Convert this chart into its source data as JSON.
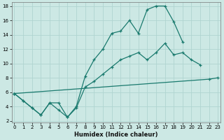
{
  "xlabel": "Humidex (Indice chaleur)",
  "bg_color": "#cce8e4",
  "grid_color": "#b0d4d0",
  "line_color": "#1a7a6e",
  "line1_x": [
    0,
    1,
    2,
    3,
    4,
    5,
    6,
    7,
    8,
    9,
    10,
    11,
    12,
    13,
    14,
    15,
    16,
    17,
    18,
    19
  ],
  "line1_y": [
    5.8,
    4.8,
    3.8,
    2.8,
    4.5,
    4.5,
    2.5,
    4.0,
    8.2,
    10.5,
    12.0,
    14.2,
    14.5,
    16.0,
    14.2,
    17.5,
    18.0,
    18.0,
    15.8,
    13.0
  ],
  "line2_x": [
    0,
    1,
    2,
    3,
    4,
    5,
    6,
    7,
    8,
    9,
    10,
    11,
    12,
    13,
    14,
    15,
    16,
    17,
    18,
    19,
    20,
    21
  ],
  "line2_y": [
    5.8,
    4.8,
    3.8,
    2.8,
    4.5,
    3.5,
    2.5,
    3.8,
    6.7,
    7.5,
    8.5,
    9.5,
    10.5,
    11.0,
    11.5,
    10.5,
    11.5,
    12.8,
    11.2,
    11.5,
    10.5,
    9.8
  ],
  "line3_x": [
    0,
    22,
    23
  ],
  "line3_y": [
    5.8,
    7.8,
    8.0
  ],
  "ylim": [
    2,
    18
  ],
  "xlim": [
    -0.3,
    23.3
  ],
  "yticks": [
    2,
    4,
    6,
    8,
    10,
    12,
    14,
    16,
    18
  ],
  "xticks": [
    0,
    1,
    2,
    3,
    4,
    5,
    6,
    7,
    8,
    9,
    10,
    11,
    12,
    13,
    14,
    15,
    16,
    17,
    18,
    19,
    20,
    21,
    22,
    23
  ]
}
